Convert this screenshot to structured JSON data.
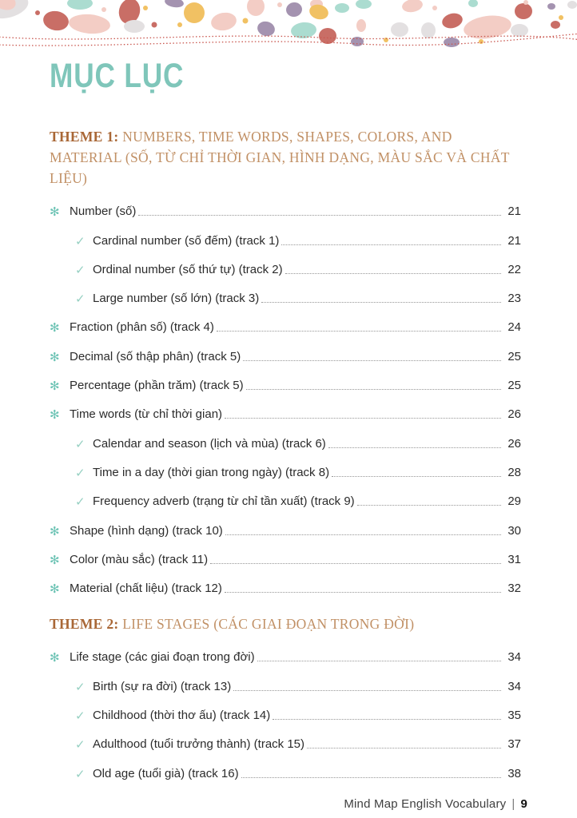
{
  "page_title": "MỤC LỤC",
  "icons": {
    "theme_bullet": "✻",
    "sub_bullet": "✓"
  },
  "colors": {
    "title_teal": "#7fc6ba",
    "bullet_teal": "#6cc3b4",
    "check_teal": "#96d0c2",
    "theme_label_orange": "#a96736",
    "theme_title_orange": "#c19065",
    "text": "#2b2b2b",
    "leader_gray": "#979797",
    "wave_red": "#c9574f"
  },
  "sections": [
    {
      "label": "THEME 1:",
      "title": "NUMBERS, TIME WORDS, SHAPES, COLORS, AND MATERIAL (SỐ, TỪ CHỈ THỜI GIAN, HÌNH DẠNG, MÀU SẮC VÀ CHẤT LIỆU)",
      "items": [
        {
          "level": 1,
          "text": "Number (số)",
          "page": "21"
        },
        {
          "level": 2,
          "text": "Cardinal number (số đếm) (track 1)",
          "page": "21"
        },
        {
          "level": 2,
          "text": "Ordinal number (số thứ tự) (track 2)",
          "page": "22"
        },
        {
          "level": 2,
          "text": "Large number (số lớn) (track 3)",
          "page": "23"
        },
        {
          "level": 1,
          "text": "Fraction (phân số) (track 4)",
          "page": "24"
        },
        {
          "level": 1,
          "text": "Decimal (số thập phân) (track 5)",
          "page": "25"
        },
        {
          "level": 1,
          "text": "Percentage (phần trăm) (track 5)",
          "page": "25"
        },
        {
          "level": 1,
          "text": "Time words (từ chỉ thời gian)",
          "page": "26"
        },
        {
          "level": 2,
          "text": "Calendar and season (lịch và mùa) (track 6)",
          "page": "26"
        },
        {
          "level": 2,
          "text": "Time in a day (thời gian trong ngày) (track 8)",
          "page": "28"
        },
        {
          "level": 2,
          "text": "Frequency adverb (trạng từ chỉ tần xuất) (track 9)",
          "page": "29"
        },
        {
          "level": 1,
          "text": "Shape (hình dạng) (track 10)",
          "page": "30"
        },
        {
          "level": 1,
          "text": "Color (màu sắc) (track 11)",
          "page": "31"
        },
        {
          "level": 1,
          "text": "Material (chất liệu) (track 12)",
          "page": "32"
        }
      ]
    },
    {
      "label": "THEME 2:",
      "title": "LIFE STAGES (CÁC GIAI ĐOẠN TRONG ĐỜI)",
      "items": [
        {
          "level": 1,
          "text": "Life stage (các giai đoạn trong đời)",
          "page": "34"
        },
        {
          "level": 2,
          "text": "Birth (sự ra đời) (track 13)",
          "page": "34"
        },
        {
          "level": 2,
          "text": "Childhood (thời thơ ấu) (track 14)",
          "page": "35"
        },
        {
          "level": 2,
          "text": "Adulthood (tuổi trưởng thành) (track 15)",
          "page": "37"
        },
        {
          "level": 2,
          "text": "Old age (tuổi già) (track 16)",
          "page": "38"
        }
      ]
    }
  ],
  "footer": {
    "book_title": "Mind Map English Vocabulary",
    "separator": "|",
    "page_number": "9"
  }
}
